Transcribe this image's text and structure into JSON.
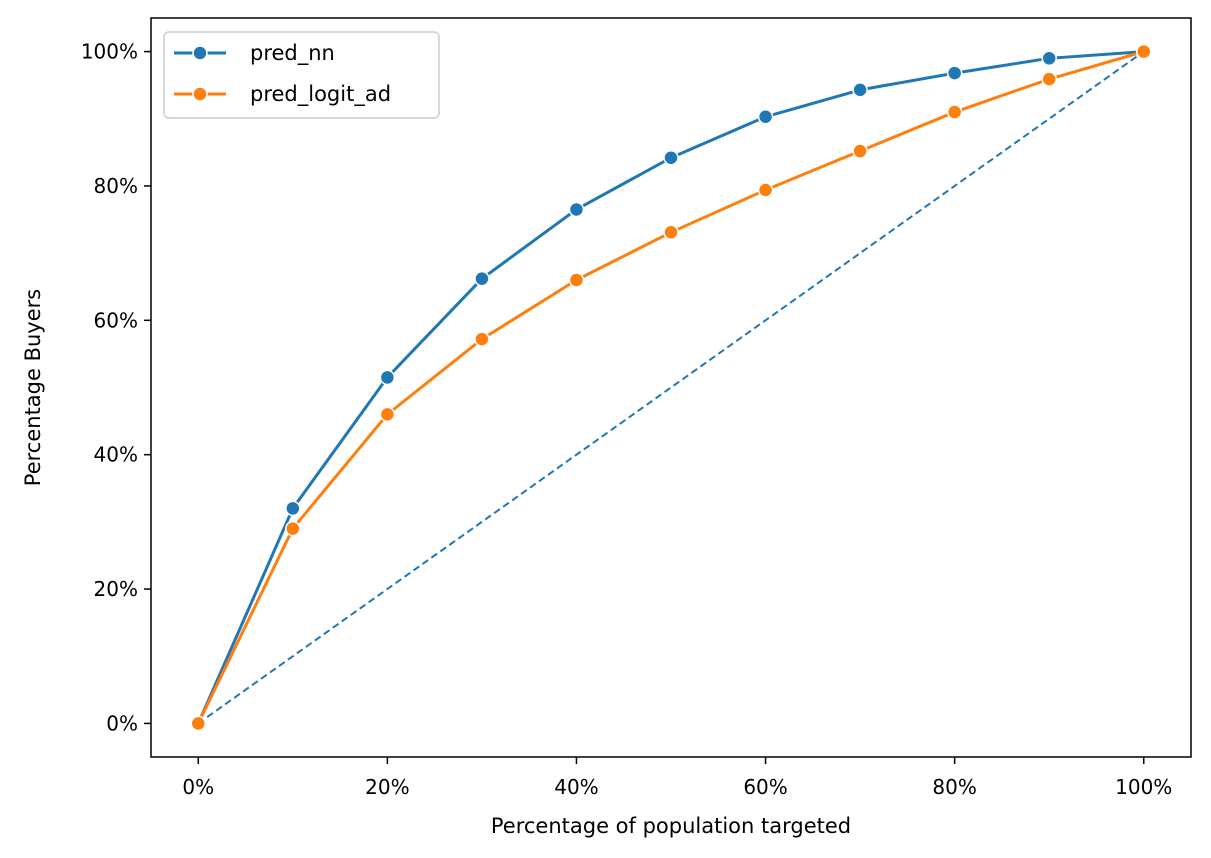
{
  "chart_data": {
    "type": "line",
    "title": "",
    "xlabel": "Percentage of population targeted",
    "ylabel": "Percentage Buyers",
    "x": [
      0,
      10,
      20,
      30,
      40,
      50,
      60,
      70,
      80,
      90,
      100
    ],
    "xlim": [
      -5,
      105
    ],
    "ylim": [
      -5,
      105
    ],
    "xticks": [
      0,
      20,
      40,
      60,
      80,
      100
    ],
    "yticks": [
      0,
      20,
      40,
      60,
      80,
      100
    ],
    "xtick_labels": [
      "0%",
      "20%",
      "40%",
      "60%",
      "80%",
      "100%"
    ],
    "ytick_labels": [
      "0%",
      "20%",
      "40%",
      "60%",
      "80%",
      "100%"
    ],
    "grid": false,
    "legend_position": "top-left",
    "series": [
      {
        "name": "pred_nn",
        "color": "#1f77b4",
        "values": [
          0,
          32,
          51.5,
          66.2,
          76.5,
          84.2,
          90.3,
          94.3,
          96.8,
          99,
          100
        ]
      },
      {
        "name": "pred_logit_ad",
        "color": "#ff7f0e",
        "values": [
          0,
          29,
          46,
          57.2,
          66,
          73.1,
          79.4,
          85.2,
          91,
          95.9,
          100
        ]
      }
    ],
    "reference_line": {
      "x": [
        0,
        100
      ],
      "y": [
        0,
        100
      ],
      "color": "#1f77b4",
      "style": "dashed"
    }
  }
}
